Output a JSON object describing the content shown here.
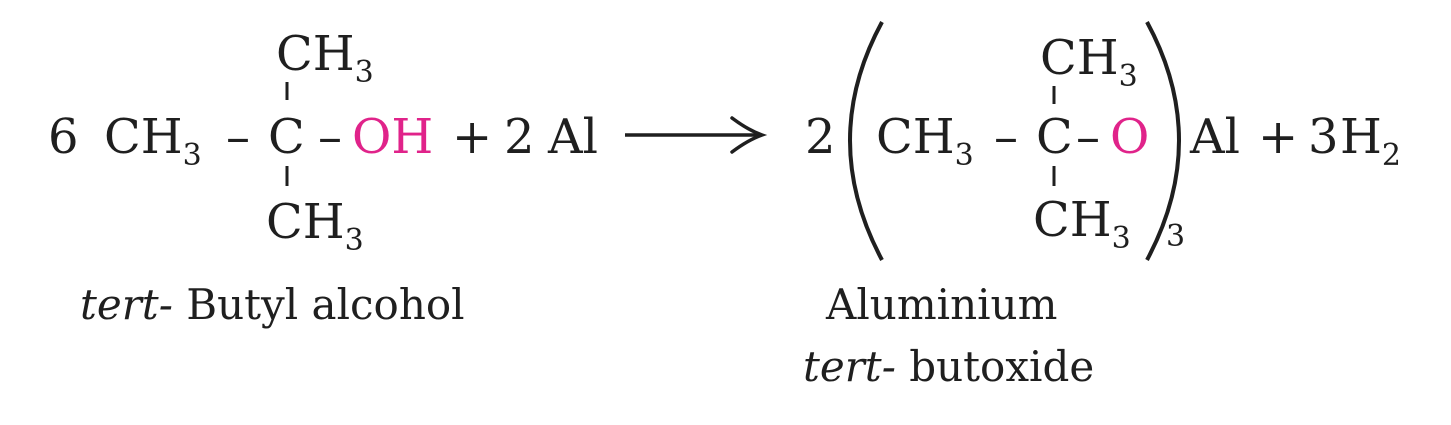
{
  "reaction": {
    "reactant": {
      "coefficient": "6",
      "left_group": "CH",
      "left_group_sub": "3",
      "bond1": "–",
      "center": "C",
      "bond2": "–",
      "oh": "OH",
      "top_group": "CH",
      "top_group_sub": "3",
      "bottom_group": "CH",
      "bottom_group_sub": "3"
    },
    "plus1": "+",
    "al_coefficient": "2",
    "al": "Al",
    "product": {
      "coefficient": "2",
      "left_group": "CH",
      "left_group_sub": "3",
      "bond1": "–",
      "center": "C",
      "bond2": "–",
      "oxygen": "O",
      "top_group": "CH",
      "top_group_sub": "3",
      "bottom_group": "CH",
      "bottom_group_sub": "3",
      "bracket_sub": "3",
      "al": "Al"
    },
    "plus2": "+",
    "h2_coefficient": "3",
    "h2": "H",
    "h2_sub": "2"
  },
  "labels": {
    "reactant_prefix": "tert-",
    "reactant_name": " Butyl alcohol",
    "product_line1": "Aluminium",
    "product_prefix": "tert-",
    "product_name": " butoxide"
  },
  "colors": {
    "text": "#1f1f1f",
    "highlight": "#e0238a"
  }
}
